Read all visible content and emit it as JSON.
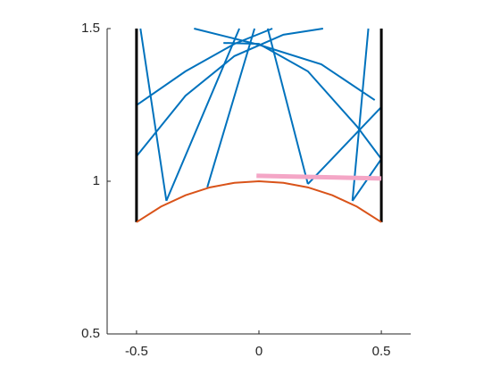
{
  "chart_data": {
    "type": "line",
    "xlim": [
      -0.62,
      0.62
    ],
    "xticks": [
      -0.5,
      0,
      0.5
    ],
    "ylim": [
      0.5,
      1.5
    ],
    "yticks": [
      0.5,
      1,
      1.5
    ],
    "grid": false,
    "series": [
      {
        "color": "#0072bd",
        "x": [
          -0.484,
          -0.378
        ],
        "values": [
          1.5,
          0.936
        ]
      },
      {
        "color": "#0072bd",
        "x": [
          -0.378,
          -0.08
        ],
        "values": [
          0.936,
          1.5
        ]
      },
      {
        "color": "#0072bd",
        "x": [
          -0.211,
          -0.018
        ],
        "values": [
          0.98,
          1.5
        ]
      },
      {
        "color": "#0072bd",
        "x": [
          0.036,
          0.2
        ],
        "values": [
          1.5,
          0.991
        ]
      },
      {
        "color": "#0072bd",
        "x": [
          0.2,
          0.5
        ],
        "values": [
          0.991,
          1.243
        ]
      },
      {
        "color": "#0072bd",
        "x": [
          0.447,
          0.382
        ],
        "values": [
          1.5,
          0.936
        ]
      },
      {
        "color": "#0072bd",
        "x": [
          0.382,
          0.5
        ],
        "values": [
          0.936,
          1.073
        ]
      },
      {
        "color": "#0072bd",
        "x": [
          -0.5,
          -0.3,
          -0.1,
          0.1,
          0.262
        ],
        "values": [
          1.082,
          1.28,
          1.41,
          1.48,
          1.5
        ]
      },
      {
        "color": "#0072bd",
        "x": [
          -0.5,
          -0.3,
          -0.1,
          0.055
        ],
        "values": [
          1.249,
          1.36,
          1.45,
          1.5
        ]
      },
      {
        "color": "#0072bd",
        "x": [
          -0.265,
          0,
          0.255,
          0.473
        ],
        "values": [
          1.5,
          1.447,
          1.383,
          1.266
        ]
      },
      {
        "color": "#0072bd",
        "x": [
          -0.145,
          0,
          0.2,
          0.4,
          0.5
        ],
        "values": [
          1.453,
          1.45,
          1.36,
          1.18,
          1.073
        ]
      },
      {
        "color": "#000000",
        "width": 3,
        "x": [
          -0.5,
          -0.5
        ],
        "values": [
          0.866,
          1.5
        ]
      },
      {
        "color": "#000000",
        "width": 3,
        "x": [
          0.5,
          0.5
        ],
        "values": [
          0.866,
          1.5
        ]
      },
      {
        "color": "#d95319",
        "x": [
          -0.5,
          -0.4,
          -0.3,
          -0.2,
          -0.1,
          0,
          0.1,
          0.2,
          0.3,
          0.4,
          0.5
        ],
        "values": [
          0.866,
          0.917,
          0.954,
          0.98,
          0.995,
          1,
          0.995,
          0.98,
          0.954,
          0.917,
          0.866
        ]
      },
      {
        "color": "#f4a6c6",
        "width": 5,
        "x": [
          -0.01,
          0.5
        ],
        "values": [
          1.018,
          1.009
        ]
      }
    ]
  }
}
